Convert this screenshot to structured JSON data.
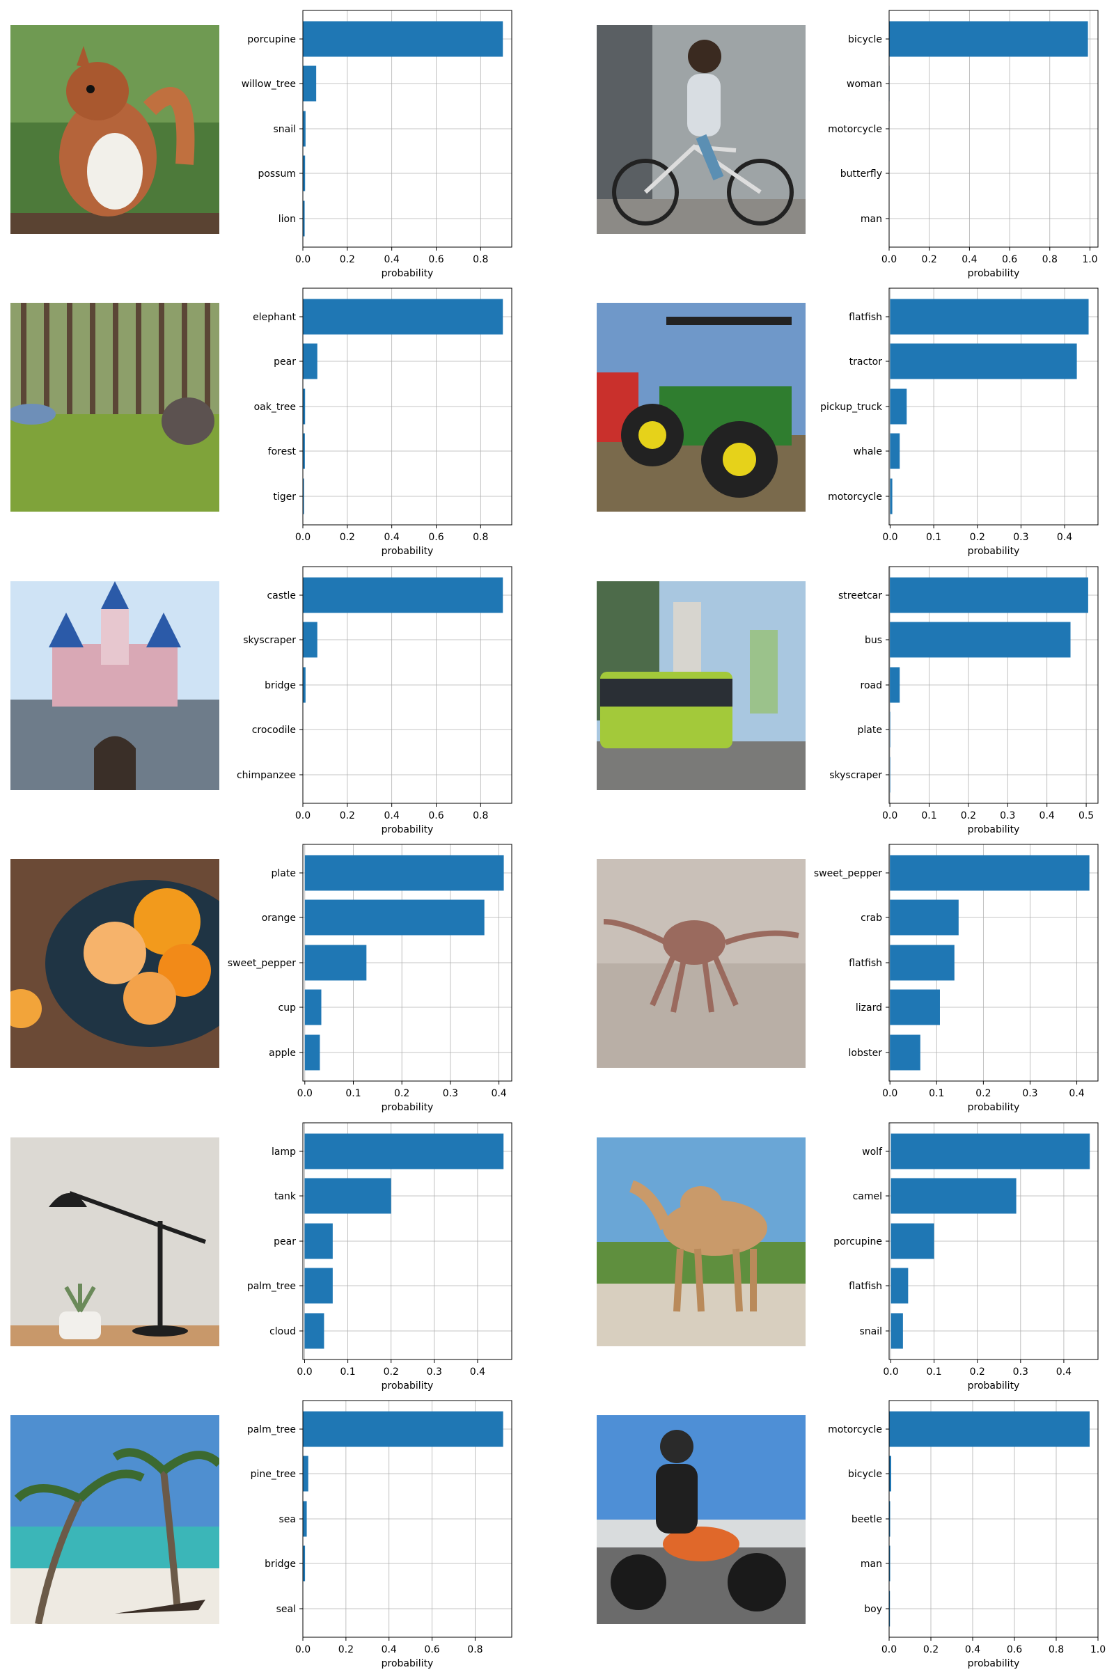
{
  "figure": {
    "xlabel_common": "probability"
  },
  "panels": [
    {
      "photo": {
        "name": "squirrel-photo",
        "subject": "squirrel"
      }
    },
    {
      "photo": {
        "name": "woman-bicycle-photo",
        "subject": "woman riding bicycle"
      }
    },
    {
      "photo": {
        "name": "forest-elephant-photo",
        "subject": "elephant in forest"
      }
    },
    {
      "photo": {
        "name": "tractor-photo",
        "subject": "green tractor"
      }
    },
    {
      "photo": {
        "name": "castle-photo",
        "subject": "castle"
      }
    },
    {
      "photo": {
        "name": "bus-photo",
        "subject": "city bus"
      }
    },
    {
      "photo": {
        "name": "oranges-plate-photo",
        "subject": "oranges on plate"
      }
    },
    {
      "photo": {
        "name": "crab-photo",
        "subject": "crab on sand"
      }
    },
    {
      "photo": {
        "name": "lamp-photo",
        "subject": "desk lamp with plant"
      }
    },
    {
      "photo": {
        "name": "camel-photo",
        "subject": "camel"
      }
    },
    {
      "photo": {
        "name": "palm-beach-photo",
        "subject": "palm trees on beach"
      }
    },
    {
      "photo": {
        "name": "motorcycle-photo",
        "subject": "motorcycle rider"
      }
    }
  ],
  "chart_data": [
    {
      "type": "bar",
      "orientation": "horizontal",
      "categories": [
        "porcupine",
        "willow_tree",
        "snail",
        "possum",
        "lion"
      ],
      "values": [
        0.9,
        0.06,
        0.012,
        0.01,
        0.008
      ],
      "xlim": [
        0,
        0.94
      ],
      "xticks": [
        "0.0",
        "0.2",
        "0.4",
        "0.6",
        "0.8"
      ],
      "tick_values": [
        0,
        0.2,
        0.4,
        0.6,
        0.8
      ],
      "xlabel": "probability",
      "grid": true,
      "bar_color": "#1f77b4"
    },
    {
      "type": "bar",
      "orientation": "horizontal",
      "categories": [
        "bicycle",
        "woman",
        "motorcycle",
        "butterfly",
        "man"
      ],
      "values": [
        0.99,
        0.002,
        0.001,
        0.001,
        0.001
      ],
      "xlim": [
        0,
        1.04
      ],
      "xticks": [
        "0.0",
        "0.2",
        "0.4",
        "0.6",
        "0.8",
        "1.0"
      ],
      "tick_values": [
        0,
        0.2,
        0.4,
        0.6,
        0.8,
        1.0
      ],
      "xlabel": "probability",
      "grid": true,
      "bar_color": "#1f77b4"
    },
    {
      "type": "bar",
      "orientation": "horizontal",
      "categories": [
        "elephant",
        "pear",
        "oak_tree",
        "forest",
        "tiger"
      ],
      "values": [
        0.9,
        0.065,
        0.01,
        0.009,
        0.005
      ],
      "xlim": [
        0,
        0.94
      ],
      "xticks": [
        "0.0",
        "0.2",
        "0.4",
        "0.6",
        "0.8"
      ],
      "tick_values": [
        0,
        0.2,
        0.4,
        0.6,
        0.8
      ],
      "xlabel": "probability",
      "grid": true,
      "bar_color": "#1f77b4"
    },
    {
      "type": "bar",
      "orientation": "horizontal",
      "categories": [
        "flatfish",
        "tractor",
        "pickup_truck",
        "whale",
        "motorcycle"
      ],
      "values": [
        0.455,
        0.428,
        0.038,
        0.022,
        0.005
      ],
      "xlim": [
        -0.0023,
        0.4765
      ],
      "xticks": [
        "0.0",
        "0.1",
        "0.2",
        "0.3",
        "0.4"
      ],
      "tick_values": [
        0,
        0.1,
        0.2,
        0.3,
        0.4
      ],
      "xlabel": "probability",
      "grid": true,
      "bar_color": "#1f77b4"
    },
    {
      "type": "bar",
      "orientation": "horizontal",
      "categories": [
        "castle",
        "skyscraper",
        "bridge",
        "crocodile",
        "chimpanzee"
      ],
      "values": [
        0.9,
        0.065,
        0.012,
        0.001,
        0.001
      ],
      "xlim": [
        0,
        0.94
      ],
      "xticks": [
        "0.0",
        "0.2",
        "0.4",
        "0.6",
        "0.8"
      ],
      "tick_values": [
        0,
        0.2,
        0.4,
        0.6,
        0.8
      ],
      "xlabel": "probability",
      "grid": true,
      "bar_color": "#1f77b4"
    },
    {
      "type": "bar",
      "orientation": "horizontal",
      "categories": [
        "streetcar",
        "bus",
        "road",
        "plate",
        "skyscraper"
      ],
      "values": [
        0.505,
        0.46,
        0.025,
        0.001,
        0.001
      ],
      "xlim": [
        -0.002,
        0.53
      ],
      "xticks": [
        "0.0",
        "0.1",
        "0.2",
        "0.3",
        "0.4",
        "0.5"
      ],
      "tick_values": [
        0,
        0.1,
        0.2,
        0.3,
        0.4,
        0.5
      ],
      "xlabel": "probability",
      "grid": true,
      "bar_color": "#1f77b4"
    },
    {
      "type": "bar",
      "orientation": "horizontal",
      "categories": [
        "plate",
        "orange",
        "sweet_pepper",
        "cup",
        "apple"
      ],
      "values": [
        0.41,
        0.37,
        0.127,
        0.034,
        0.031
      ],
      "xlim": [
        -0.004,
        0.4264
      ],
      "xticks": [
        "0.0",
        "0.1",
        "0.2",
        "0.3",
        "0.4"
      ],
      "tick_values": [
        0,
        0.1,
        0.2,
        0.3,
        0.4
      ],
      "xlabel": "probability",
      "grid": true,
      "bar_color": "#1f77b4"
    },
    {
      "type": "bar",
      "orientation": "horizontal",
      "categories": [
        "sweet_pepper",
        "crab",
        "flatfish",
        "lizard",
        "lobster"
      ],
      "values": [
        0.427,
        0.147,
        0.138,
        0.107,
        0.065
      ],
      "xlim": [
        -0.0018,
        0.4454
      ],
      "xticks": [
        "0.0",
        "0.1",
        "0.2",
        "0.3",
        "0.4"
      ],
      "tick_values": [
        0,
        0.1,
        0.2,
        0.3,
        0.4
      ],
      "xlabel": "probability",
      "grid": true,
      "bar_color": "#1f77b4"
    },
    {
      "type": "bar",
      "orientation": "horizontal",
      "categories": [
        "lamp",
        "tank",
        "pear",
        "palm_tree",
        "cloud"
      ],
      "values": [
        0.46,
        0.2,
        0.065,
        0.065,
        0.045
      ],
      "xlim": [
        -0.004,
        0.479
      ],
      "xticks": [
        "0.0",
        "0.1",
        "0.2",
        "0.3",
        "0.4"
      ],
      "tick_values": [
        0,
        0.1,
        0.2,
        0.3,
        0.4
      ],
      "xlabel": "probability",
      "grid": true,
      "bar_color": "#1f77b4"
    },
    {
      "type": "bar",
      "orientation": "horizontal",
      "categories": [
        "wolf",
        "camel",
        "porcupine",
        "flatfish",
        "snail"
      ],
      "values": [
        0.46,
        0.29,
        0.1,
        0.04,
        0.028
      ],
      "xlim": [
        -0.004,
        0.479
      ],
      "xticks": [
        "0.0",
        "0.1",
        "0.2",
        "0.3",
        "0.4"
      ],
      "tick_values": [
        0,
        0.1,
        0.2,
        0.3,
        0.4
      ],
      "xlabel": "probability",
      "grid": true,
      "bar_color": "#1f77b4"
    },
    {
      "type": "bar",
      "orientation": "horizontal",
      "categories": [
        "palm_tree",
        "pine_tree",
        "sea",
        "bridge",
        "seal"
      ],
      "values": [
        0.93,
        0.025,
        0.018,
        0.01,
        0.001
      ],
      "xlim": [
        0,
        0.97
      ],
      "xticks": [
        "0.0",
        "0.2",
        "0.4",
        "0.6",
        "0.8"
      ],
      "tick_values": [
        0,
        0.2,
        0.4,
        0.6,
        0.8
      ],
      "xlabel": "probability",
      "grid": true,
      "bar_color": "#1f77b4"
    },
    {
      "type": "bar",
      "orientation": "horizontal",
      "categories": [
        "motorcycle",
        "bicycle",
        "beetle",
        "man",
        "boy"
      ],
      "values": [
        0.96,
        0.01,
        0.005,
        0.005,
        0.004
      ],
      "xlim": [
        0,
        1.0
      ],
      "xticks": [
        "0.0",
        "0.2",
        "0.4",
        "0.6",
        "0.8",
        "1.0"
      ],
      "tick_values": [
        0,
        0.2,
        0.4,
        0.6,
        0.8,
        1.0
      ],
      "xlabel": "probability",
      "grid": true,
      "bar_color": "#1f77b4"
    }
  ]
}
